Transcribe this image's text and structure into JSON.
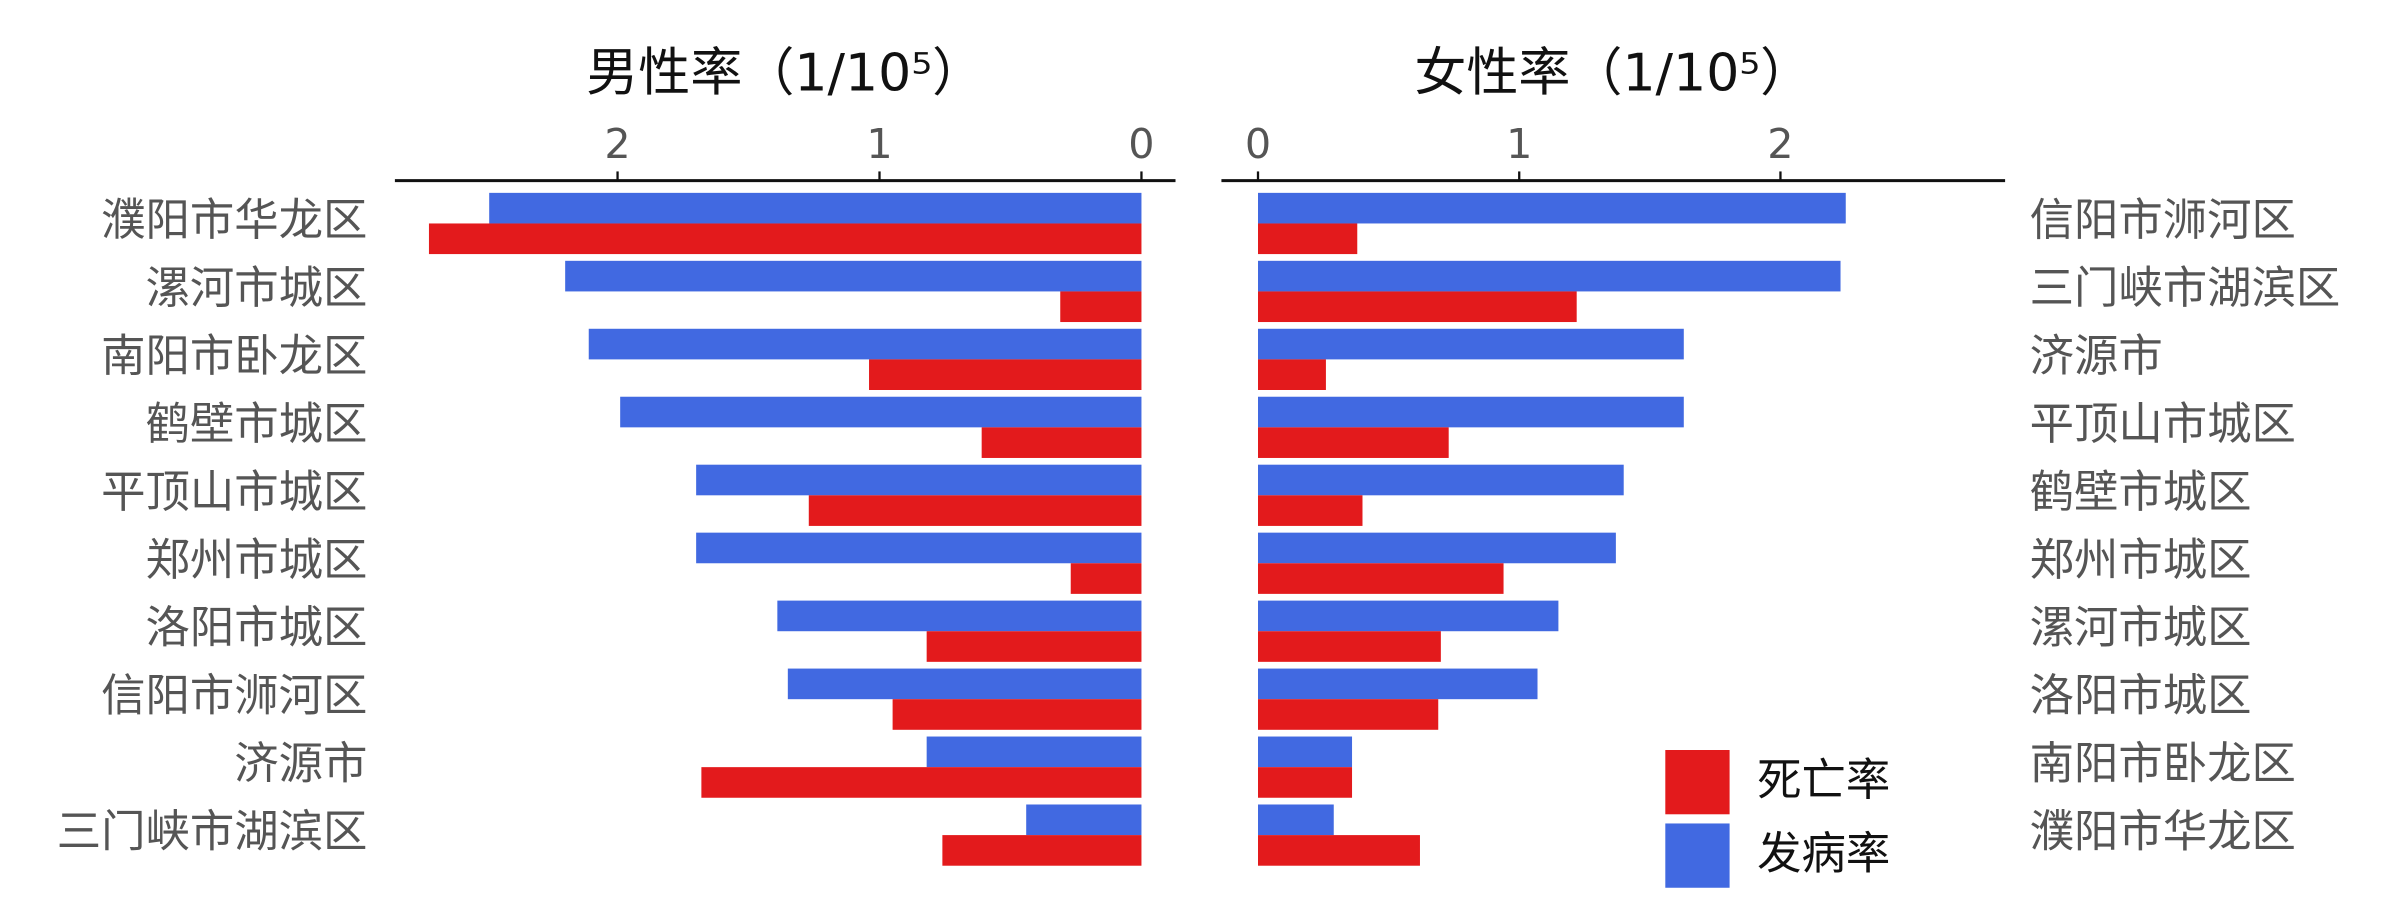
{
  "chart_data": [
    {
      "type": "bar",
      "orientation": "horizontal",
      "title": "男性率（1/10⁵）",
      "categories": [
        "濮阳市华龙区",
        "漯河市城区",
        "南阳市卧龙区",
        "鹤壁市城区",
        "平顶山市城区",
        "郑州市城区",
        "洛阳市城区",
        "信阳市浉河区",
        "济源市",
        "三门峡市湖滨区"
      ],
      "series": [
        {
          "color": "#4169e1",
          "values": [
            2.49,
            2.2,
            2.11,
            1.99,
            1.7,
            1.7,
            1.39,
            1.35,
            0.82,
            0.44
          ]
        },
        {
          "color": "#e31a1c",
          "values": [
            2.72,
            0.31,
            1.04,
            0.61,
            1.27,
            0.27,
            0.82,
            0.95,
            1.68,
            0.76
          ]
        }
      ],
      "xlim": [
        2.85,
        -0.13
      ],
      "xticks": [
        2,
        1,
        0
      ]
    },
    {
      "type": "bar",
      "orientation": "horizontal",
      "title": "女性率（1/10⁵）",
      "categories": [
        "信阳市浉河区",
        "三门峡市湖滨区",
        "济源市",
        "平顶山市城区",
        "鹤壁市城区",
        "郑州市城区",
        "漯河市城区",
        "洛阳市城区",
        "南阳市卧龙区",
        "濮阳市华龙区"
      ],
      "series": [
        {
          "name": "发病率",
          "color": "#4169e1",
          "values": [
            2.25,
            2.23,
            1.63,
            1.63,
            1.4,
            1.37,
            1.15,
            1.07,
            0.36,
            0.29
          ]
        },
        {
          "name": "死亡率",
          "color": "#e31a1c",
          "values": [
            0.38,
            1.22,
            0.26,
            0.73,
            0.4,
            0.94,
            0.7,
            0.69,
            0.36,
            0.62
          ]
        }
      ],
      "xlim": [
        -0.14,
        2.86
      ],
      "xticks": [
        0,
        1,
        2
      ]
    }
  ]
}
